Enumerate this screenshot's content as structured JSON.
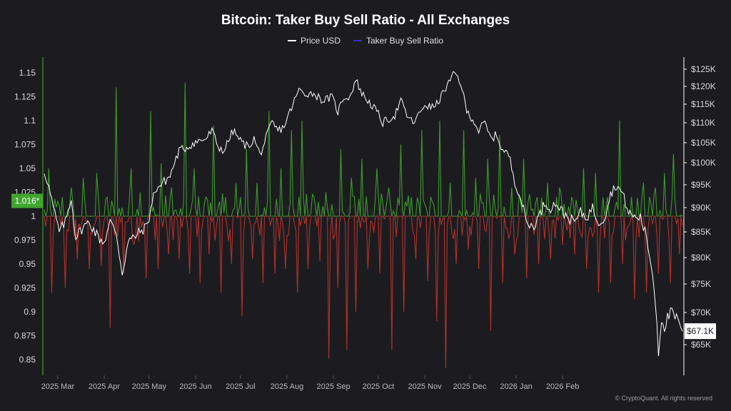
{
  "chart_data": {
    "type": "bar",
    "title": "Bitcoin: Taker Buy Sell Ratio - All Exchanges",
    "series": [
      {
        "name": "Price USD",
        "type": "line",
        "color": "#ffffff",
        "axis": "right"
      },
      {
        "name": "Taker Buy Sell Ratio",
        "type": "bar",
        "color": "#3a2fc9",
        "axis": "left",
        "baseline": 1
      }
    ],
    "left_axis": {
      "ticks": [
        "1.15",
        "1.125",
        "1.1",
        "1.075",
        "1.05",
        "1.025",
        "1",
        "0.975",
        "0.95",
        "0.925",
        "0.9",
        "0.875",
        "0.85"
      ],
      "range": [
        0.835,
        1.165
      ],
      "current_label": "1.016*",
      "current_value": 1.016
    },
    "right_axis": {
      "ticks": [
        "$125K",
        "$120K",
        "$115K",
        "$110K",
        "$105K",
        "$100K",
        "$95K",
        "$90K",
        "$85K",
        "$80K",
        "$75K",
        "$70K",
        "$65K"
      ],
      "current_label": "$67.1K",
      "current_value": 67.1
    },
    "x_axis": {
      "ticks": [
        "2025 Mar",
        "2025 Apr",
        "2025 May",
        "2025 Jun",
        "2025 Jul",
        "2025 Aug",
        "2025 Sep",
        "2025 Oct",
        "2025 Nov",
        "2025 Dec",
        "2026 Jan",
        "2026 Feb"
      ],
      "start": "2025-02-20",
      "end": "2026-02-21"
    },
    "price_knots": [
      [
        0,
        98
      ],
      [
        2,
        96
      ],
      [
        6,
        90
      ],
      [
        10,
        85
      ],
      [
        14,
        87
      ],
      [
        18,
        92
      ],
      [
        21,
        84
      ],
      [
        26,
        86
      ],
      [
        30,
        87
      ],
      [
        36,
        84
      ],
      [
        40,
        83
      ],
      [
        44,
        87
      ],
      [
        48,
        85
      ],
      [
        52,
        77
      ],
      [
        56,
        83
      ],
      [
        60,
        84
      ],
      [
        64,
        85
      ],
      [
        68,
        86
      ],
      [
        70,
        88
      ],
      [
        74,
        94
      ],
      [
        78,
        95
      ],
      [
        84,
        97
      ],
      [
        90,
        103
      ],
      [
        96,
        104
      ],
      [
        100,
        105
      ],
      [
        108,
        106
      ],
      [
        112,
        108
      ],
      [
        116,
        104
      ],
      [
        120,
        103
      ],
      [
        126,
        108
      ],
      [
        132,
        105
      ],
      [
        136,
        104
      ],
      [
        140,
        106
      ],
      [
        144,
        102
      ],
      [
        148,
        106
      ],
      [
        152,
        110
      ],
      [
        156,
        108
      ],
      [
        160,
        109
      ],
      [
        166,
        115
      ],
      [
        170,
        119
      ],
      [
        174,
        118
      ],
      [
        180,
        118
      ],
      [
        186,
        116
      ],
      [
        192,
        117
      ],
      [
        196,
        113
      ],
      [
        200,
        117
      ],
      [
        204,
        117
      ],
      [
        208,
        122
      ],
      [
        212,
        118
      ],
      [
        218,
        115
      ],
      [
        222,
        113
      ],
      [
        226,
        110
      ],
      [
        230,
        111
      ],
      [
        234,
        112
      ],
      [
        238,
        116
      ],
      [
        242,
        112
      ],
      [
        246,
        110
      ],
      [
        250,
        112
      ],
      [
        254,
        115
      ],
      [
        258,
        114
      ],
      [
        262,
        115
      ],
      [
        266,
        118
      ],
      [
        270,
        121
      ],
      [
        274,
        124
      ],
      [
        278,
        121
      ],
      [
        282,
        113
      ],
      [
        286,
        111
      ],
      [
        290,
        108
      ],
      [
        294,
        110
      ],
      [
        298,
        106
      ],
      [
        302,
        107
      ],
      [
        306,
        103
      ],
      [
        310,
        102
      ],
      [
        314,
        96
      ],
      [
        318,
        92
      ],
      [
        322,
        87
      ],
      [
        326,
        86
      ],
      [
        330,
        88
      ],
      [
        334,
        91
      ],
      [
        338,
        90
      ],
      [
        342,
        91
      ],
      [
        346,
        89
      ],
      [
        350,
        88
      ],
      [
        354,
        87
      ],
      [
        358,
        89
      ],
      [
        362,
        88
      ],
      [
        366,
        90
      ],
      [
        370,
        87
      ],
      [
        374,
        88
      ],
      [
        378,
        93
      ],
      [
        382,
        95
      ],
      [
        386,
        93
      ],
      [
        390,
        89
      ],
      [
        394,
        88
      ],
      [
        398,
        88
      ],
      [
        402,
        84
      ],
      [
        406,
        77
      ],
      [
        408,
        72
      ],
      [
        410,
        64
      ],
      [
        412,
        69
      ],
      [
        414,
        68
      ],
      [
        418,
        70
      ],
      [
        422,
        69
      ],
      [
        426,
        67.1
      ]
    ],
    "ratio_spikes_up": [
      [
        3,
        1.05
      ],
      [
        12,
        1.02
      ],
      [
        18,
        1.03
      ],
      [
        26,
        1.04
      ],
      [
        35,
        1.045
      ],
      [
        42,
        1.02
      ],
      [
        48,
        1.135
      ],
      [
        58,
        1.05
      ],
      [
        64,
        1.025
      ],
      [
        71,
        1.11
      ],
      [
        78,
        1.055
      ],
      [
        85,
        1.03
      ],
      [
        94,
        1.14
      ],
      [
        100,
        1.05
      ],
      [
        108,
        1.02
      ],
      [
        113,
        1.095
      ],
      [
        121,
        1.02
      ],
      [
        128,
        1.035
      ],
      [
        135,
        1.07
      ],
      [
        142,
        1.035
      ],
      [
        150,
        1.11
      ],
      [
        158,
        1.05
      ],
      [
        165,
        1.09
      ],
      [
        172,
        1.1
      ],
      [
        180,
        1.02
      ],
      [
        188,
        1.025
      ],
      [
        198,
        1.07
      ],
      [
        205,
        1.04
      ],
      [
        212,
        1.06
      ],
      [
        222,
        1.05
      ],
      [
        230,
        1.03
      ],
      [
        238,
        1.075
      ],
      [
        245,
        1.02
      ],
      [
        252,
        1.09
      ],
      [
        258,
        1.02
      ],
      [
        264,
        1.1
      ],
      [
        271,
        1.035
      ],
      [
        280,
        1.09
      ],
      [
        288,
        1.04
      ],
      [
        296,
        1.06
      ],
      [
        304,
        1.085
      ],
      [
        312,
        1.03
      ],
      [
        320,
        1.06
      ],
      [
        329,
        1.02
      ],
      [
        336,
        1.035
      ],
      [
        344,
        1.03
      ],
      [
        352,
        1.02
      ],
      [
        360,
        1.05
      ],
      [
        368,
        1.045
      ],
      [
        376,
        1.02
      ],
      [
        384,
        1.1
      ],
      [
        392,
        1.02
      ],
      [
        400,
        1.035
      ],
      [
        408,
        1.03
      ],
      [
        414,
        1.045
      ],
      [
        420,
        1.065
      ],
      [
        424,
        1.02
      ]
    ],
    "ratio_spikes_down": [
      [
        5,
        0.92
      ],
      [
        14,
        0.925
      ],
      [
        22,
        0.955
      ],
      [
        30,
        0.945
      ],
      [
        38,
        0.948
      ],
      [
        44,
        0.883
      ],
      [
        53,
        0.94
      ],
      [
        60,
        0.97
      ],
      [
        68,
        0.935
      ],
      [
        76,
        0.945
      ],
      [
        83,
        0.96
      ],
      [
        90,
        0.955
      ],
      [
        97,
        0.94
      ],
      [
        104,
        0.93
      ],
      [
        110,
        0.96
      ],
      [
        118,
        0.92
      ],
      [
        125,
        0.95
      ],
      [
        132,
        0.895
      ],
      [
        139,
        0.955
      ],
      [
        146,
        0.93
      ],
      [
        154,
        0.94
      ],
      [
        161,
        0.945
      ],
      [
        169,
        0.92
      ],
      [
        176,
        0.945
      ],
      [
        184,
        0.953
      ],
      [
        190,
        0.851
      ],
      [
        196,
        0.925
      ],
      [
        202,
        0.86
      ],
      [
        208,
        0.9
      ],
      [
        216,
        0.945
      ],
      [
        224,
        0.94
      ],
      [
        232,
        0.86
      ],
      [
        240,
        0.9
      ],
      [
        248,
        0.955
      ],
      [
        256,
        0.932
      ],
      [
        262,
        0.89
      ],
      [
        268,
        0.841
      ],
      [
        275,
        0.95
      ],
      [
        283,
        0.965
      ],
      [
        290,
        0.945
      ],
      [
        298,
        0.88
      ],
      [
        306,
        0.93
      ],
      [
        314,
        0.96
      ],
      [
        322,
        0.935
      ],
      [
        330,
        0.95
      ],
      [
        338,
        0.955
      ],
      [
        346,
        0.97
      ],
      [
        354,
        0.96
      ],
      [
        362,
        0.945
      ],
      [
        370,
        0.92
      ],
      [
        378,
        0.93
      ],
      [
        386,
        0.95
      ],
      [
        394,
        0.913
      ],
      [
        402,
        0.92
      ],
      [
        410,
        0.94
      ],
      [
        418,
        0.93
      ],
      [
        424,
        0.96
      ]
    ]
  },
  "legend": {
    "price_label": "Price USD",
    "ratio_label": "Taker Buy Sell Ratio"
  },
  "footer": {
    "copyright": "© CryptoQuant. All rights reserved",
    "watermark": "CryptoQuant"
  },
  "colors": {
    "background": "#1c1c20",
    "positive": "#3e9a2c",
    "negative": "#b3302b",
    "price": "#ffffff",
    "grid": "#2a2a30",
    "axis_left": "#42b52f",
    "axis_right": "#ffffff"
  }
}
